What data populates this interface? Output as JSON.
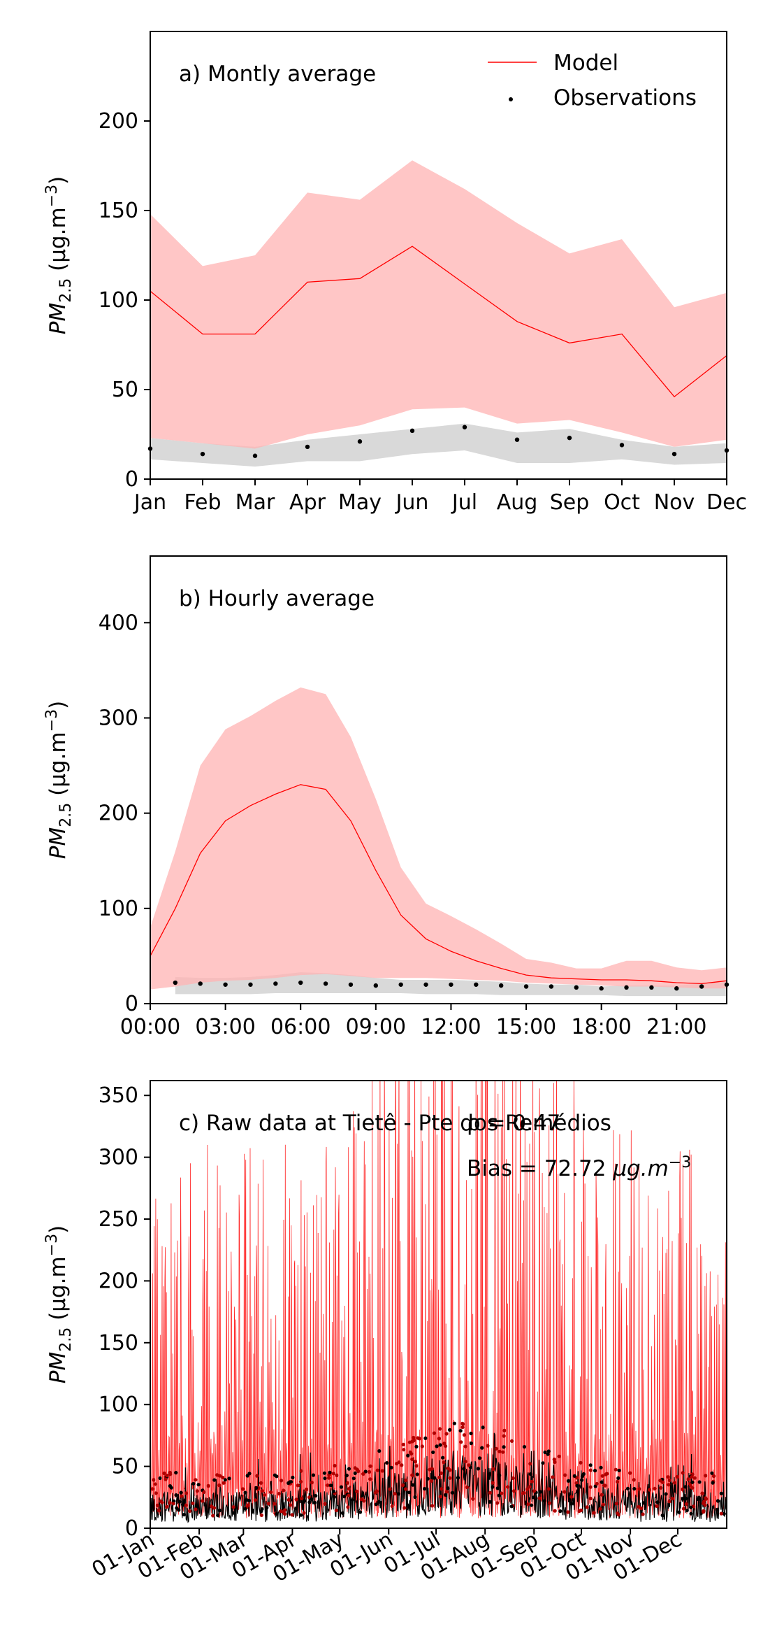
{
  "colors": {
    "model": "#ff0000",
    "model_band": "#ffb3b3",
    "obs": "#000000",
    "obs_band": "#d9d9d9"
  },
  "legend": {
    "model": "Model",
    "observations": "Observations"
  },
  "ylabel": {
    "var": "PM",
    "sub": "2.5",
    "unit_open": " (µg.m",
    "unit_exp": "−3",
    "unit_close": ")"
  },
  "chart_data": [
    {
      "type": "line",
      "title": "a) Montly average",
      "categories": [
        "Jan",
        "Feb",
        "Mar",
        "Apr",
        "May",
        "Jun",
        "Jul",
        "Aug",
        "Sep",
        "Oct",
        "Nov",
        "Dec"
      ],
      "ylim": [
        0,
        250
      ],
      "yticks": [
        0,
        50,
        100,
        150,
        200
      ],
      "legend_position": "top-right",
      "series": [
        {
          "name": "Model",
          "values": [
            105,
            81,
            81,
            110,
            112,
            130,
            109,
            88,
            76,
            81,
            46,
            69
          ]
        },
        {
          "name": "Observations",
          "values": [
            17,
            14,
            13,
            18,
            21,
            27,
            29,
            22,
            23,
            19,
            14,
            16
          ]
        }
      ],
      "model_band_upper": [
        148,
        119,
        125,
        160,
        156,
        178,
        162,
        143,
        126,
        134,
        96,
        104
      ],
      "model_band_lower": [
        23,
        20,
        17,
        25,
        30,
        39,
        40,
        31,
        33,
        26,
        18,
        22
      ],
      "obs_band_upper": [
        23,
        20,
        18,
        22,
        25,
        28,
        31,
        26,
        28,
        22,
        18,
        20
      ],
      "obs_band_lower": [
        11,
        9,
        7,
        10,
        10,
        14,
        16,
        9,
        9,
        11,
        8,
        9
      ]
    },
    {
      "type": "line",
      "title": "b) Hourly average",
      "x": [
        0,
        1,
        2,
        3,
        4,
        5,
        6,
        7,
        8,
        9,
        10,
        11,
        12,
        13,
        14,
        15,
        16,
        17,
        18,
        19,
        20,
        21,
        22,
        23
      ],
      "xticks": [
        0,
        3,
        6,
        9,
        12,
        15,
        18,
        21
      ],
      "xtick_labels": [
        "00:00",
        "03:00",
        "06:00",
        "09:00",
        "12:00",
        "15:00",
        "18:00",
        "21:00"
      ],
      "ylim": [
        0,
        470
      ],
      "yticks": [
        0,
        100,
        200,
        300,
        400
      ],
      "series": [
        {
          "name": "Model",
          "values": [
            50,
            100,
            158,
            192,
            208,
            220,
            230,
            225,
            192,
            140,
            93,
            68,
            55,
            45,
            37,
            30,
            27,
            26,
            25,
            25,
            24,
            22,
            21,
            24
          ]
        },
        {
          "name": "Observations",
          "values": [
            null,
            22,
            21,
            20,
            20,
            21,
            22,
            21,
            20,
            19,
            20,
            20,
            20,
            20,
            19,
            18,
            18,
            17,
            16,
            17,
            17,
            16,
            18,
            20
          ]
        }
      ],
      "model_band_upper": [
        80,
        160,
        250,
        288,
        302,
        318,
        332,
        325,
        280,
        215,
        143,
        105,
        92,
        78,
        63,
        47,
        43,
        37,
        37,
        45,
        45,
        38,
        35,
        38
      ],
      "model_band_lower": [
        15,
        18,
        22,
        24,
        25,
        27,
        30,
        31,
        29,
        27,
        27,
        27,
        26,
        25,
        24,
        22,
        21,
        20,
        19,
        18,
        18,
        17,
        16,
        16
      ],
      "obs_band_upper": [
        null,
        28,
        27,
        27,
        28,
        30,
        33,
        32,
        30,
        27,
        25,
        25,
        25,
        24,
        23,
        21,
        20,
        20,
        18,
        19,
        19,
        19,
        21,
        23
      ],
      "obs_band_lower": [
        null,
        10,
        10,
        10,
        10,
        11,
        11,
        11,
        11,
        11,
        11,
        10,
        10,
        10,
        9,
        9,
        9,
        9,
        9,
        8,
        8,
        8,
        8,
        8
      ]
    },
    {
      "type": "line",
      "title": "c) Raw data at  Tietê - Pte dos Remédios",
      "annotation_r": "ρ = 0.47",
      "annotation_bias": "Bias = 72.72 ",
      "annotation_unit_open": "µg.m",
      "annotation_unit_exp": "−3",
      "xtick_labels": [
        "01-Jan",
        "01-Feb",
        "01-Mar",
        "01-Apr",
        "01-May",
        "01-Jun",
        "01-Jul",
        "01-Aug",
        "01-Sep",
        "01-Oct",
        "01-Nov",
        "01-Dec"
      ],
      "xtick_days": [
        0,
        31,
        59,
        90,
        120,
        151,
        181,
        212,
        243,
        273,
        304,
        334
      ],
      "xlim_days": [
        0,
        365
      ],
      "ylim": [
        0,
        362
      ],
      "yticks": [
        0,
        50,
        100,
        150,
        200,
        250,
        300,
        350
      ],
      "series": [
        {
          "name": "Model",
          "description_values": "hourly, spiky values 0 to >360"
        },
        {
          "name": "Observations",
          "description_values": "hourly, mostly 0 to 80"
        }
      ]
    }
  ]
}
